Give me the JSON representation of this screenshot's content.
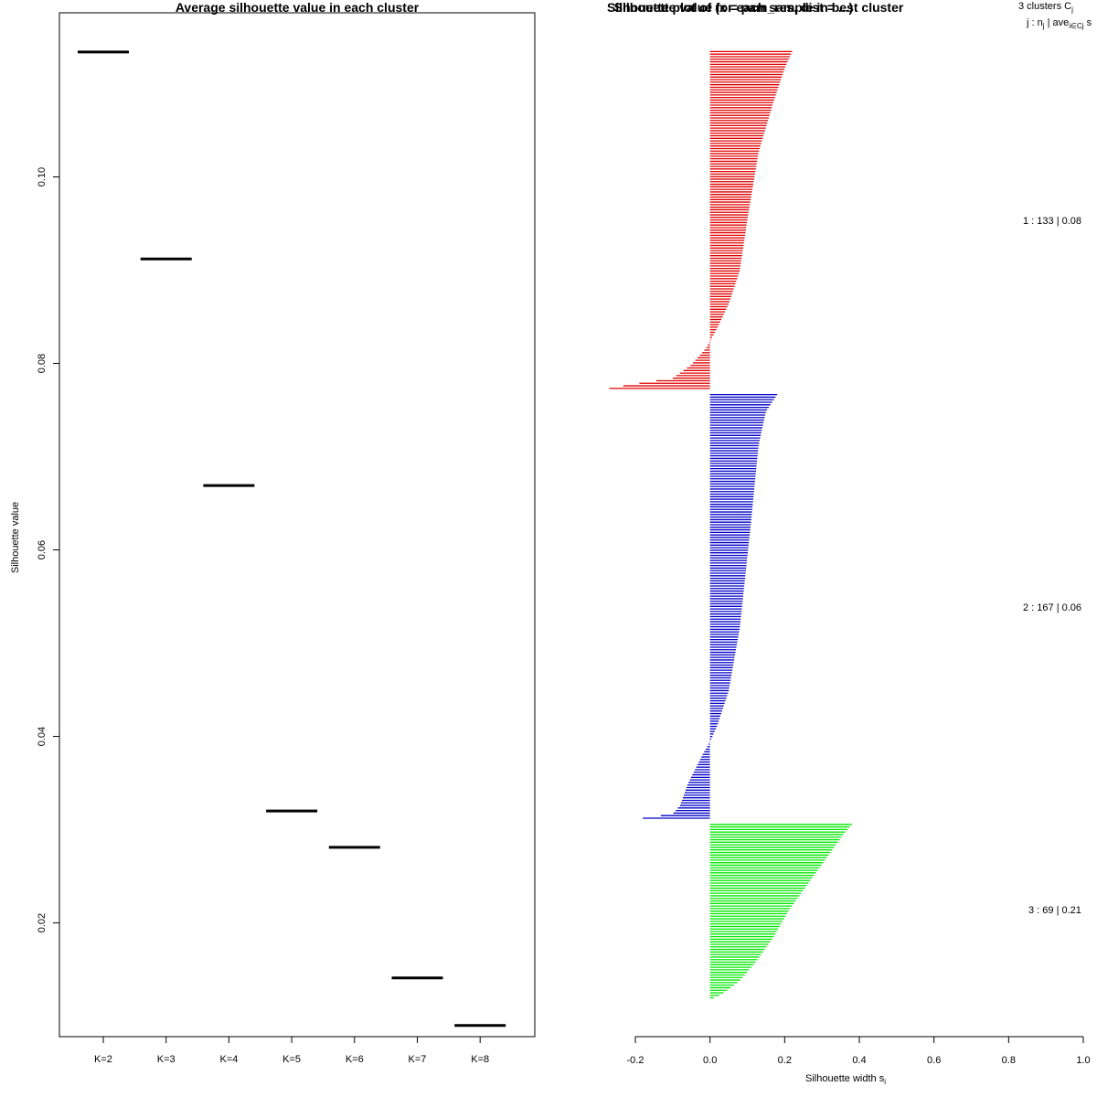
{
  "chart_data": [
    {
      "type": "line",
      "title": "Average silhouette value in each cluster",
      "xlabel": "",
      "ylabel": "Silhouette value",
      "categories": [
        "K=2",
        "K=3",
        "K=4",
        "K=5",
        "K=6",
        "K=7",
        "K=8"
      ],
      "values": [
        0.1134,
        0.0912,
        0.0669,
        0.032,
        0.0281,
        0.0141,
        0.009
      ],
      "ylim": [
        0.0078,
        0.1176
      ],
      "yticks": [
        "0.02",
        "0.04",
        "0.06",
        "0.08",
        "0.10"
      ],
      "ytick_values": [
        0.02,
        0.04,
        0.06,
        0.08,
        0.1
      ]
    },
    {
      "type": "bar",
      "orientation": "horizontal",
      "title": "Silhouette value for each sample in best cluster",
      "overlapping_title": "Silhouette plot of (x = pam_res, dist = ...)",
      "xlabel": "Silhouette width s",
      "xlabel_sub": "i",
      "xlim": [
        -0.2,
        1.0
      ],
      "xticks": [
        "-0.2",
        "0.0",
        "0.2",
        "0.4",
        "0.6",
        "0.8",
        "1.0"
      ],
      "xtick_values": [
        -0.2,
        0.0,
        0.2,
        0.4,
        0.6,
        0.8,
        1.0
      ],
      "legend_header": {
        "line1_main": "3  clusters  C",
        "line1_sub": "j",
        "line2_a": "j :  n",
        "line2_a_sub": "j",
        "line2_b": " | ave",
        "line2_b_sub": "i∈Cj",
        "line2_c": "  s"
      },
      "series": [
        {
          "name": "1 :  133  |  0.08",
          "cluster": 1,
          "n": 133,
          "avg": 0.08,
          "color": "#e00000",
          "max": 0.22,
          "min": -0.27,
          "positive_count": 104,
          "shape": [
            [
              0,
              0.22
            ],
            [
              0.05,
              0.2
            ],
            [
              0.15,
              0.17
            ],
            [
              0.3,
              0.13
            ],
            [
              0.5,
              0.1
            ],
            [
              0.65,
              0.08
            ],
            [
              0.75,
              0.05
            ],
            [
              0.82,
              0.02
            ],
            [
              0.85,
              0.005
            ],
            [
              0.88,
              -0.01
            ],
            [
              0.93,
              -0.05
            ],
            [
              0.97,
              -0.1
            ],
            [
              0.99,
              -0.22
            ],
            [
              1.0,
              -0.27
            ]
          ]
        },
        {
          "name": "2 :  167  |  0.06",
          "cluster": 2,
          "n": 167,
          "avg": 0.06,
          "color": "#0000c8",
          "max": 0.18,
          "min": -0.18,
          "positive_count": 137,
          "shape": [
            [
              0,
              0.18
            ],
            [
              0.04,
              0.15
            ],
            [
              0.12,
              0.13
            ],
            [
              0.3,
              0.11
            ],
            [
              0.55,
              0.08
            ],
            [
              0.7,
              0.05
            ],
            [
              0.78,
              0.02
            ],
            [
              0.82,
              0.0
            ],
            [
              0.85,
              -0.02
            ],
            [
              0.92,
              -0.06
            ],
            [
              0.97,
              -0.08
            ],
            [
              0.99,
              -0.1
            ],
            [
              1.0,
              -0.18
            ]
          ]
        },
        {
          "name": "3 :  69  |  0.21",
          "cluster": 3,
          "n": 69,
          "avg": 0.21,
          "color": "#00e800",
          "max": 0.38,
          "min": 0.01,
          "positive_count": 69,
          "shape": [
            [
              0,
              0.38
            ],
            [
              0.05,
              0.36
            ],
            [
              0.2,
              0.31
            ],
            [
              0.35,
              0.26
            ],
            [
              0.5,
              0.21
            ],
            [
              0.65,
              0.17
            ],
            [
              0.8,
              0.12
            ],
            [
              0.9,
              0.08
            ],
            [
              0.95,
              0.05
            ],
            [
              0.98,
              0.03
            ],
            [
              1.0,
              0.01
            ]
          ]
        }
      ]
    }
  ]
}
